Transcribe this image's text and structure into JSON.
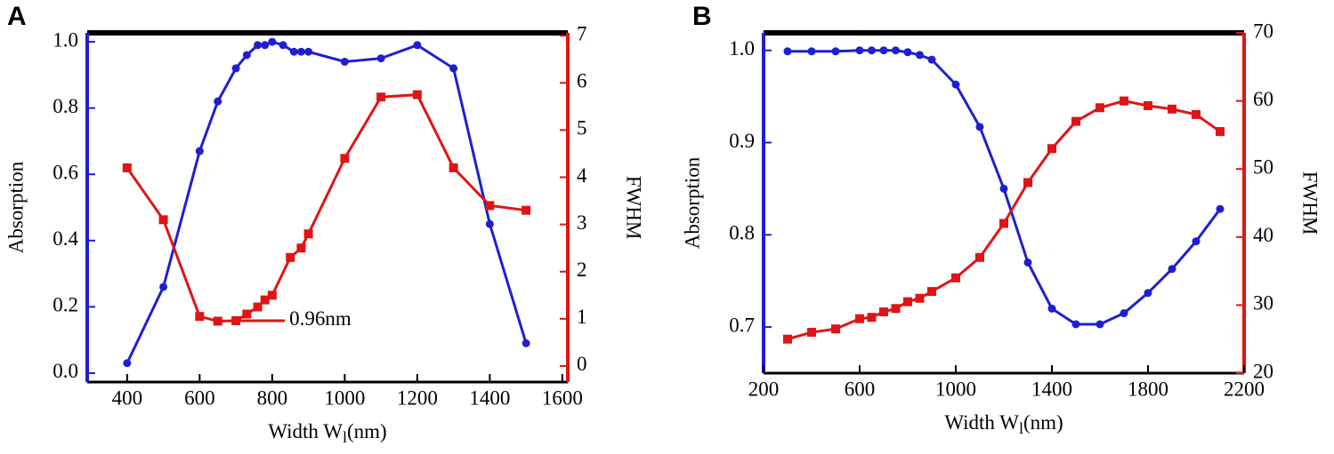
{
  "chart_data": [
    {
      "type": "line",
      "panel": "A",
      "x_label": "Width  W",
      "x_label_sub": "l",
      "x_label_suffix": "(nm)",
      "y_label": "Absorption",
      "y2_label": "FWHM",
      "xlim": [
        290,
        1615
      ],
      "xticks": [
        400,
        600,
        800,
        1000,
        1200,
        1400,
        1600
      ],
      "ylim": [
        -0.027,
        1.027
      ],
      "yticks": [
        {
          "value": 0,
          "label": "0.0"
        },
        0.2,
        0.4,
        0.6,
        0.8,
        {
          "value": 1,
          "label": "1.0"
        }
      ],
      "y2lim": [
        -0.34,
        7.06
      ],
      "y2ticks": [
        0,
        1,
        2,
        3,
        4,
        5,
        6,
        7
      ],
      "series": [
        {
          "color": "#1f1fd0",
          "marker": "circle",
          "x": [
            400,
            500,
            600,
            650,
            700,
            730,
            760,
            780,
            800,
            830,
            860,
            880,
            900,
            1000,
            1100,
            1200,
            1300,
            1400,
            1500
          ],
          "values": [
            0.03,
            0.26,
            0.67,
            0.82,
            0.92,
            0.96,
            0.99,
            0.99,
            1.0,
            0.99,
            0.97,
            0.97,
            0.97,
            0.94,
            0.95,
            0.99,
            0.92,
            0.45,
            0.09
          ]
        },
        {
          "color": "#e01414",
          "marker": "square",
          "axis": "y2",
          "x": [
            400,
            500,
            600,
            650,
            700,
            730,
            760,
            780,
            800,
            850,
            880,
            900,
            1000,
            1100,
            1200,
            1300,
            1400,
            1500
          ],
          "values": [
            4.2,
            3.1,
            1.05,
            0.95,
            0.96,
            1.1,
            1.25,
            1.4,
            1.5,
            2.3,
            2.5,
            2.8,
            4.4,
            5.7,
            5.75,
            4.2,
            3.4,
            3.3
          ]
        }
      ],
      "annotation": {
        "text": "0.96nm",
        "series": 1,
        "point": 4
      }
    },
    {
      "type": "line",
      "panel": "B",
      "x_label": "Width  W",
      "x_label_sub": "l",
      "x_label_suffix": "(nm)",
      "y_label": "Absorption",
      "y2_label": "FWHM",
      "xlim": [
        200,
        2200
      ],
      "xticks": [
        200,
        600,
        1000,
        1400,
        1800,
        2200
      ],
      "ylim": [
        0.65,
        1.019
      ],
      "yticks": [
        0.7,
        0.8,
        0.9,
        {
          "value": 1,
          "label": "1.0"
        }
      ],
      "y2lim": [
        20,
        70
      ],
      "y2ticks": [
        20,
        30,
        40,
        50,
        60,
        70
      ],
      "series": [
        {
          "color": "#1f1fd0",
          "marker": "circle",
          "x": [
            300,
            400,
            500,
            600,
            650,
            700,
            750,
            800,
            850,
            900,
            1000,
            1100,
            1200,
            1300,
            1400,
            1500,
            1600,
            1700,
            1800,
            1900,
            2000,
            2100
          ],
          "values": [
            0.999,
            0.999,
            0.999,
            1.0,
            1.0,
            1.0,
            1.0,
            0.998,
            0.995,
            0.99,
            0.963,
            0.917,
            0.85,
            0.77,
            0.72,
            0.703,
            0.703,
            0.715,
            0.737,
            0.763,
            0.793,
            0.828
          ]
        },
        {
          "color": "#e01414",
          "marker": "square",
          "axis": "y2",
          "x": [
            300,
            400,
            500,
            600,
            650,
            700,
            750,
            800,
            850,
            900,
            1000,
            1100,
            1200,
            1300,
            1400,
            1500,
            1600,
            1700,
            1800,
            1900,
            2000,
            2100
          ],
          "values": [
            25,
            26,
            26.5,
            28,
            28.2,
            29,
            29.5,
            30.5,
            31,
            32,
            34,
            37,
            42,
            48,
            53,
            57,
            59,
            60,
            59.3,
            58.8,
            58,
            55.5
          ]
        }
      ]
    }
  ]
}
